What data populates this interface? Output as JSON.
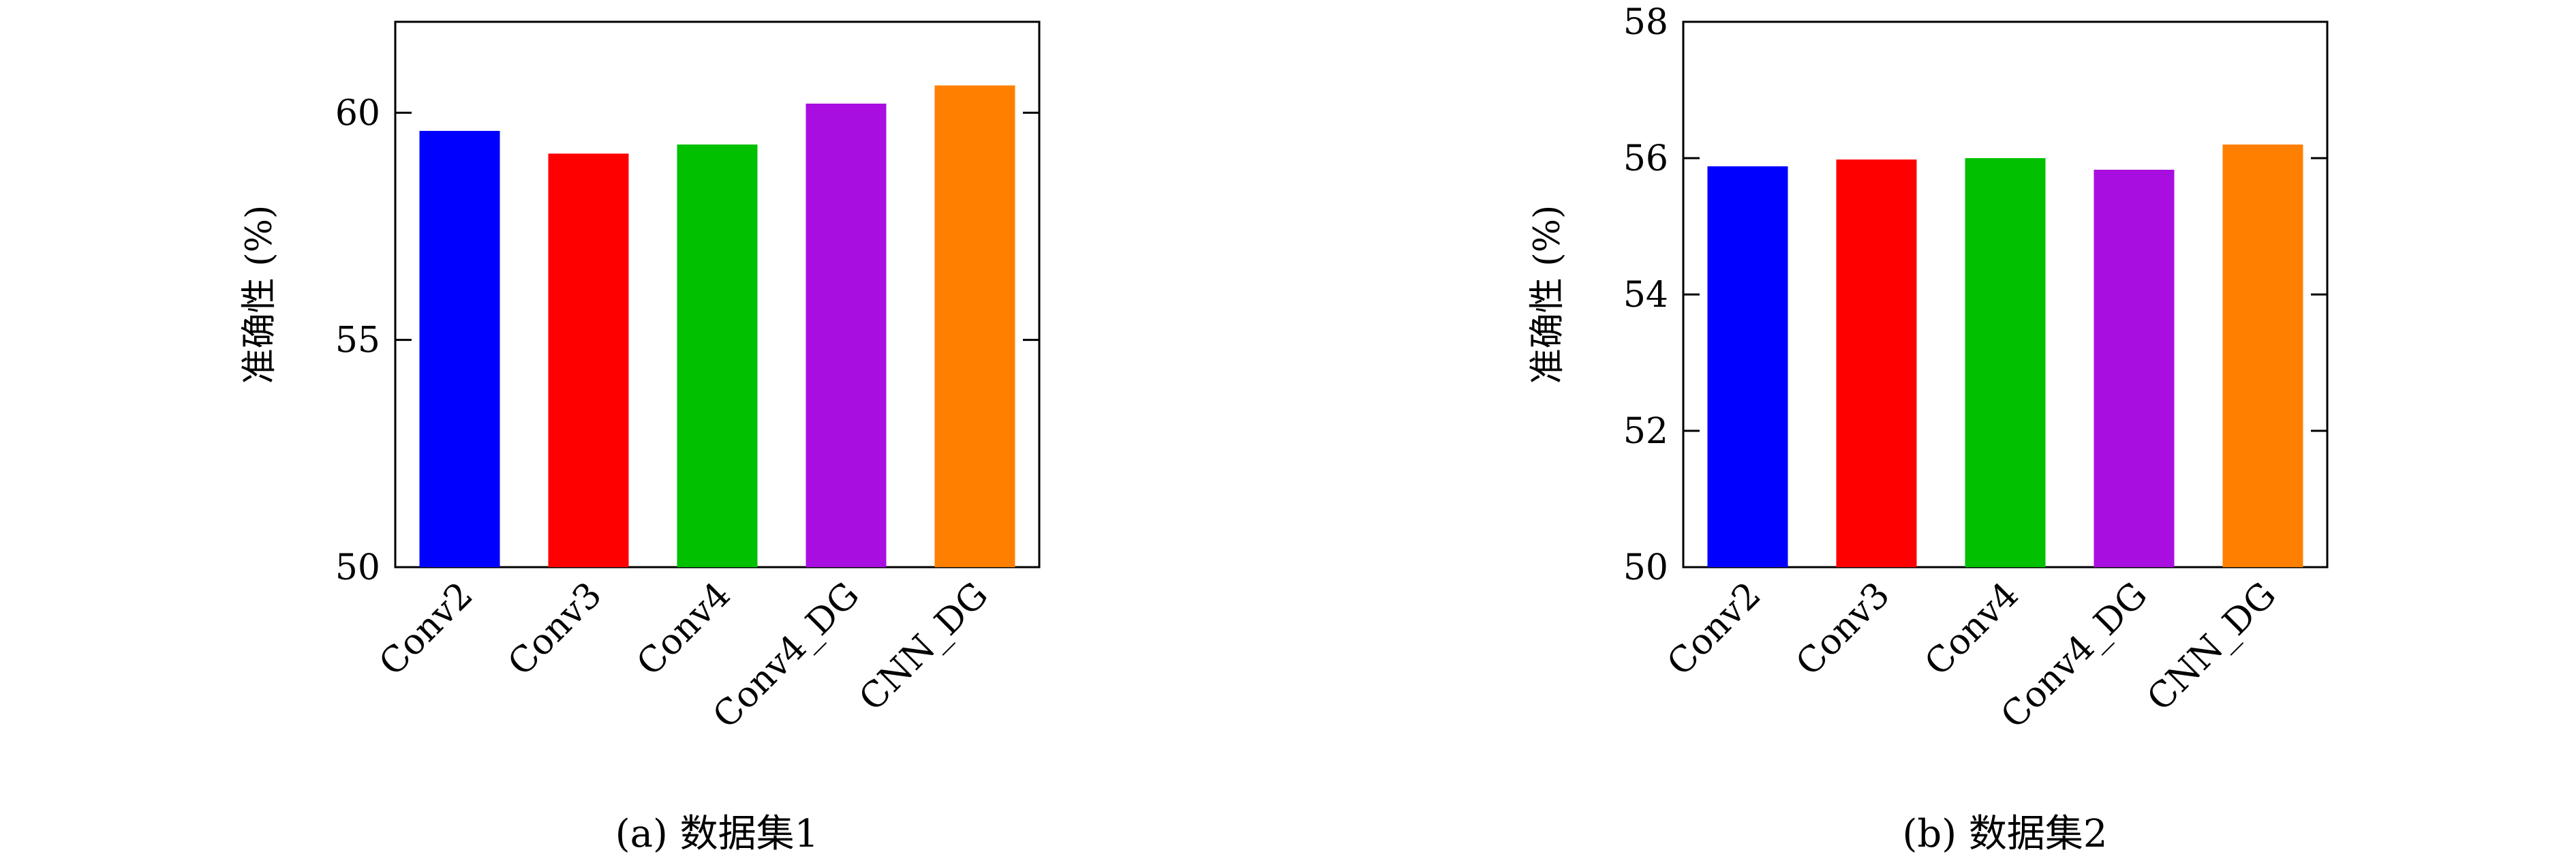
{
  "chart_data": [
    {
      "type": "bar",
      "caption": "(a) 数据集1",
      "ylabel": "准确性 (%)",
      "ylim": [
        50,
        62
      ],
      "yticks": [
        "50",
        "55",
        "60"
      ],
      "categories": [
        "Conv2",
        "Conv3",
        "Conv4",
        "Conv4_DG",
        "CNN_DG"
      ],
      "values": [
        59.6,
        59.1,
        59.3,
        60.2,
        60.6
      ],
      "colors": [
        "#0000ff",
        "#ff0000",
        "#00c000",
        "#a80ee0",
        "#ff8000"
      ]
    },
    {
      "type": "bar",
      "caption": "(b) 数据集2",
      "ylabel": "准确性 (%)",
      "ylim": [
        50,
        58
      ],
      "yticks": [
        "50",
        "52",
        "54",
        "56",
        "58"
      ],
      "categories": [
        "Conv2",
        "Conv3",
        "Conv4",
        "Conv4_DG",
        "CNN_DG"
      ],
      "values": [
        55.88,
        55.98,
        56.0,
        55.83,
        56.2
      ],
      "colors": [
        "#0000ff",
        "#ff0000",
        "#00c000",
        "#a80ee0",
        "#ff8000"
      ]
    }
  ]
}
